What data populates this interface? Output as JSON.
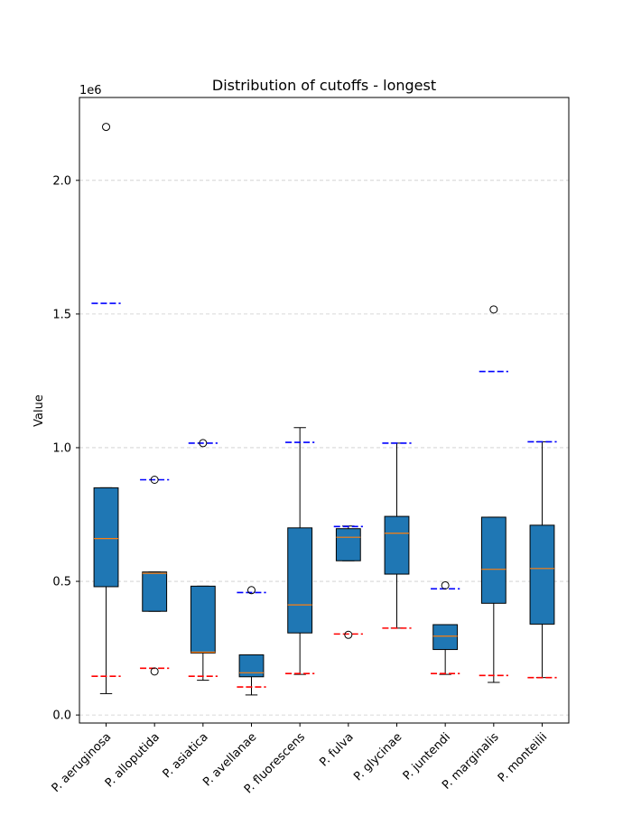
{
  "chart_data": {
    "type": "box",
    "title": "Distribution of cutoffs - longest",
    "xlabel": "",
    "ylabel": "Value",
    "y_offset_label": "1e6",
    "ylim": [
      -30000,
      2310000
    ],
    "yticks": [
      0.0,
      0.5,
      1.0,
      1.5,
      2.0
    ],
    "ytick_labels": [
      "0.0",
      "0.5",
      "1.0",
      "1.5",
      "2.0"
    ],
    "y_scale": 1000000,
    "grid": "y-dashed",
    "categories": [
      "P. aeruginosa",
      "P. alloputida",
      "P. asiatica",
      "P. avellanae",
      "P. fluorescens",
      "P. fulva",
      "P. glycinae",
      "P. juntendi",
      "P. marginalis",
      "P. monteilii"
    ],
    "boxes": [
      {
        "q1": 480000,
        "median": 660000,
        "q3": 850000,
        "whisker_low": 80000,
        "whisker_high": 850000,
        "outliers": [
          2200000
        ],
        "blue_line": 1540000,
        "red_line": 145000
      },
      {
        "q1": 388000,
        "median": 530000,
        "q3": 535000,
        "whisker_low": 388000,
        "whisker_high": 535000,
        "outliers": [
          880000,
          163000
        ],
        "blue_line": 880000,
        "red_line": 175000
      },
      {
        "q1": 232000,
        "median": 235000,
        "q3": 482000,
        "whisker_low": 130000,
        "whisker_high": 482000,
        "outliers": [
          1017000
        ],
        "blue_line": 1017000,
        "red_line": 145000
      },
      {
        "q1": 143000,
        "median": 158000,
        "q3": 225000,
        "whisker_low": 75000,
        "whisker_high": 225000,
        "outliers": [
          467000
        ],
        "blue_line": 458000,
        "red_line": 105000
      },
      {
        "q1": 307000,
        "median": 412000,
        "q3": 700000,
        "whisker_low": 152000,
        "whisker_high": 1075000,
        "outliers": [],
        "blue_line": 1020000,
        "red_line": 155000
      },
      {
        "q1": 577000,
        "median": 665000,
        "q3": 697000,
        "whisker_low": 577000,
        "whisker_high": 707000,
        "outliers": [
          300000
        ],
        "blue_line": 705000,
        "red_line": 303000
      },
      {
        "q1": 527000,
        "median": 680000,
        "q3": 743000,
        "whisker_low": 325000,
        "whisker_high": 1017000,
        "outliers": [],
        "blue_line": 1017000,
        "red_line": 325000
      },
      {
        "q1": 245000,
        "median": 295000,
        "q3": 338000,
        "whisker_low": 152000,
        "whisker_high": 338000,
        "outliers": [
          485000
        ],
        "blue_line": 472000,
        "red_line": 155000
      },
      {
        "q1": 418000,
        "median": 545000,
        "q3": 740000,
        "whisker_low": 122000,
        "whisker_high": 740000,
        "outliers": [
          1517000
        ],
        "blue_line": 1285000,
        "red_line": 148000
      },
      {
        "q1": 340000,
        "median": 548000,
        "q3": 710000,
        "whisker_low": 140000,
        "whisker_high": 1022000,
        "outliers": [],
        "blue_line": 1022000,
        "red_line": 140000
      }
    ],
    "colors": {
      "box_fill": "#1f77b4",
      "median": "#ff7f0e",
      "upper_ref": "#0000ff",
      "lower_ref": "#ff0000",
      "grid": "#cccccc",
      "axis": "#000000"
    }
  }
}
